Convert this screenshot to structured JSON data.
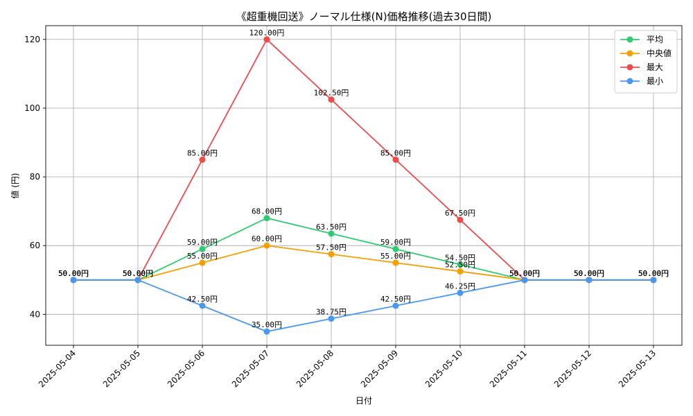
{
  "chart_data": {
    "type": "line",
    "title": "《超重機回送》ノーマル仕様(N)価格推移(過去30日間)",
    "xlabel": "日付",
    "ylabel": "値 (円)",
    "ylim": [
      31,
      124
    ],
    "y_ticks": [
      40,
      60,
      80,
      100,
      120
    ],
    "grid": true,
    "legend_position": "top-right",
    "categories": [
      "2025-05-04",
      "2025-05-05",
      "2025-05-06",
      "2025-05-07",
      "2025-05-08",
      "2025-05-09",
      "2025-05-10",
      "2025-05-11",
      "2025-05-12",
      "2025-05-13"
    ],
    "series": [
      {
        "name": "平均",
        "color": "#2ecc71",
        "values": [
          50,
          50,
          59,
          68,
          63.5,
          59,
          54.5,
          50,
          50,
          50
        ]
      },
      {
        "name": "中央値",
        "color": "#f5a000",
        "values": [
          50,
          50,
          55,
          60,
          57.5,
          55,
          52.5,
          50,
          50,
          50
        ]
      },
      {
        "name": "最大",
        "color": "#ef4b4b",
        "values": [
          50,
          50,
          85,
          120,
          102.5,
          85,
          67.5,
          50,
          50,
          50
        ]
      },
      {
        "name": "最小",
        "color": "#4a97f0",
        "values": [
          50,
          50,
          42.5,
          35,
          38.75,
          42.5,
          46.25,
          50,
          50,
          50
        ]
      }
    ],
    "label_suffix": "円"
  }
}
